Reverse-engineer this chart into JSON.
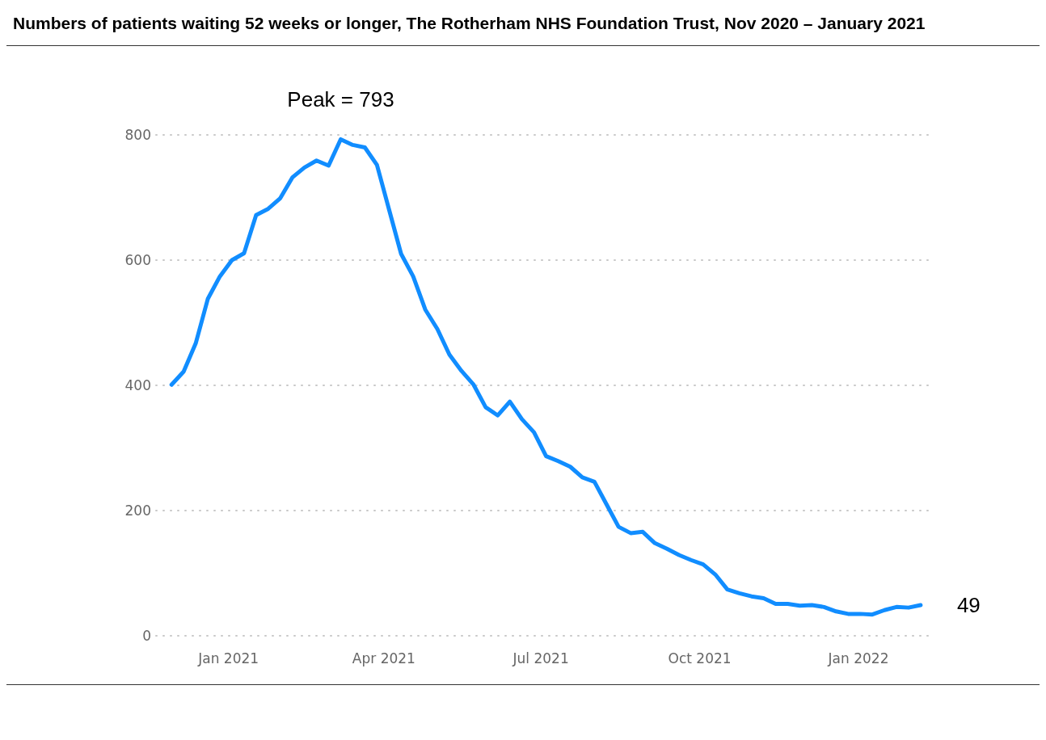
{
  "chart_data": {
    "type": "line",
    "title": "Numbers of patients waiting 52 weeks or longer, The Rotherham NHS Foundation Trust, Nov 2020 – January 2021",
    "x": [
      "2020-11-29",
      "2020-12-06",
      "2020-12-13",
      "2020-12-20",
      "2020-12-27",
      "2021-01-03",
      "2021-01-10",
      "2021-01-17",
      "2021-01-24",
      "2021-01-31",
      "2021-02-07",
      "2021-02-14",
      "2021-02-21",
      "2021-02-28",
      "2021-03-07",
      "2021-03-14",
      "2021-03-21",
      "2021-03-28",
      "2021-04-04",
      "2021-04-11",
      "2021-04-18",
      "2021-04-25",
      "2021-05-02",
      "2021-05-09",
      "2021-05-16",
      "2021-05-23",
      "2021-05-30",
      "2021-06-06",
      "2021-06-13",
      "2021-06-20",
      "2021-06-27",
      "2021-07-04",
      "2021-07-11",
      "2021-07-18",
      "2021-07-25",
      "2021-08-01",
      "2021-08-08",
      "2021-08-15",
      "2021-08-22",
      "2021-08-29",
      "2021-09-05",
      "2021-09-12",
      "2021-09-19",
      "2021-09-26",
      "2021-10-03",
      "2021-10-10",
      "2021-10-17",
      "2021-10-24",
      "2021-10-31",
      "2021-11-07",
      "2021-11-14",
      "2021-11-21",
      "2021-11-28",
      "2021-12-05",
      "2021-12-12",
      "2021-12-19",
      "2021-12-26",
      "2022-01-02",
      "2022-01-09",
      "2022-01-16",
      "2022-01-23",
      "2022-01-30",
      "2022-02-06"
    ],
    "series": [
      {
        "color": "#118dff",
        "values": [
          401,
          422,
          467,
          538,
          574,
          600,
          611,
          672,
          682,
          699,
          732,
          748,
          759,
          751,
          793,
          784,
          780,
          752,
          681,
          610,
          574,
          521,
          490,
          449,
          423,
          401,
          365,
          352,
          374,
          346,
          325,
          287,
          279,
          270,
          253,
          246,
          210,
          174,
          164,
          166,
          148,
          139,
          129,
          121,
          114,
          98,
          74,
          68,
          63,
          60,
          51,
          51,
          48,
          49,
          46,
          39,
          35,
          35,
          34,
          41,
          46,
          45,
          49
        ]
      }
    ],
    "xlim": [
      "2020-11-20",
      "2022-02-14"
    ],
    "xticks": [
      {
        "value": "2021-01-01",
        "label": "Jan 2021"
      },
      {
        "value": "2021-04-01",
        "label": "Apr 2021"
      },
      {
        "value": "2021-07-01",
        "label": "Jul 2021"
      },
      {
        "value": "2021-10-01",
        "label": "Oct 2021"
      },
      {
        "value": "2022-01-01",
        "label": "Jan 2022"
      }
    ],
    "ylim": [
      0,
      800
    ],
    "yticks": [
      0,
      200,
      400,
      600,
      800
    ],
    "grid": "y",
    "line_style": "solid",
    "marker": "none",
    "annotations": [
      {
        "text": "Peak = 793",
        "x": "2021-03-07",
        "y": 793
      },
      {
        "text": "49",
        "x": "2022-02-06",
        "y": 49
      }
    ]
  }
}
